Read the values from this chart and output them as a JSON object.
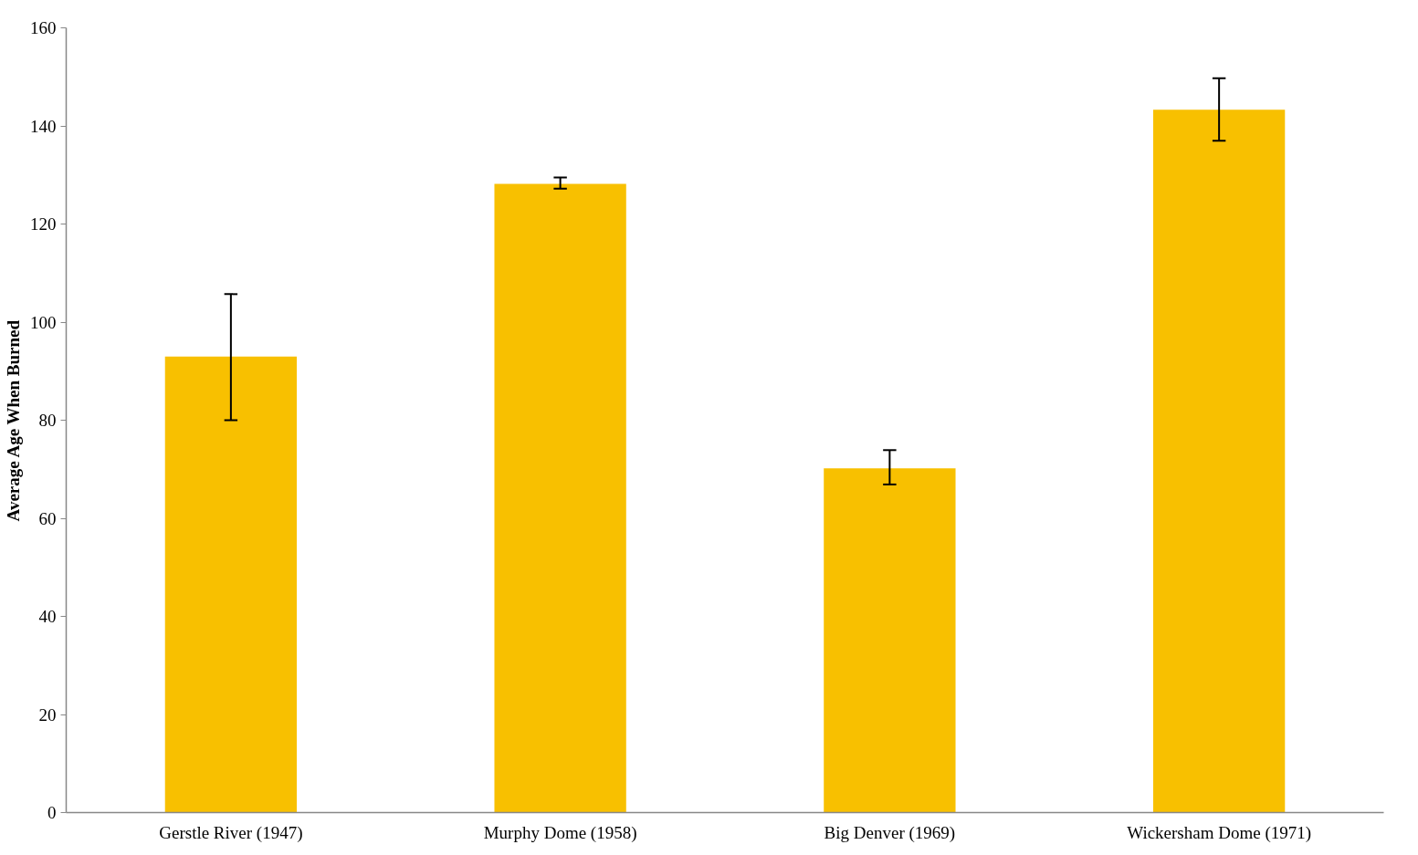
{
  "chart_data": {
    "type": "bar",
    "ylabel": "Average Age When Burned",
    "categories": [
      "Gerstle River (1947)",
      "Murphy Dome (1958)",
      "Big Denver (1969)",
      "Wickersham Dome (1971)"
    ],
    "values": [
      93,
      128.2,
      70.2,
      143.3
    ],
    "errors": [
      [
        80,
        105.7
      ],
      [
        127.2,
        129.5
      ],
      [
        66.9,
        73.9
      ],
      [
        137,
        149.7
      ]
    ],
    "color": "#f8c000",
    "ylim": [
      0,
      160
    ],
    "yticks": [
      0,
      20,
      40,
      60,
      80,
      100,
      120,
      140,
      160
    ],
    "grid": false
  }
}
